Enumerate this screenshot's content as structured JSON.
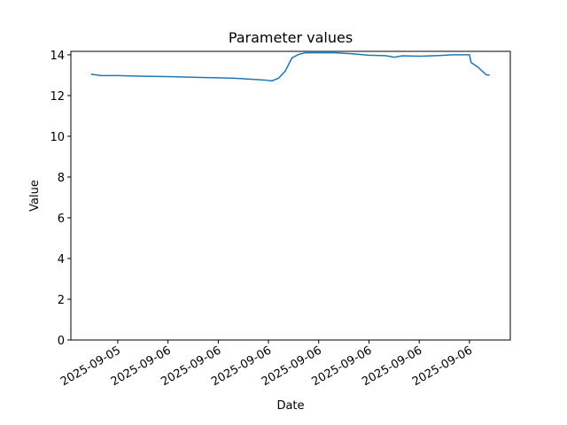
{
  "chart_data": {
    "type": "line",
    "title": "Parameter values",
    "x_label": "Date",
    "y_label": "Value",
    "x": [
      -1.6,
      -1.0,
      0,
      1,
      2,
      3,
      4,
      5,
      6,
      7,
      8,
      8.8,
      9.2,
      9.6,
      10.0,
      10.4,
      10.8,
      11.2,
      12,
      13,
      14,
      15,
      16,
      16.5,
      17,
      18,
      19,
      20,
      21,
      21.1,
      21.5,
      22.0,
      22.2
    ],
    "series": [
      {
        "name": "Value",
        "color": "#1f77b4",
        "values": [
          13.05,
          12.98,
          12.98,
          12.96,
          12.94,
          12.93,
          12.91,
          12.89,
          12.87,
          12.85,
          12.8,
          12.76,
          12.72,
          12.85,
          13.2,
          13.85,
          14.02,
          14.1,
          14.1,
          14.1,
          14.05,
          13.98,
          13.96,
          13.88,
          13.95,
          13.93,
          13.96,
          14.0,
          14.0,
          13.62,
          13.4,
          13.02,
          13.0
        ]
      }
    ],
    "xlim": [
      -2.8,
      23.44
    ],
    "xticks": [
      {
        "value": 0,
        "label": "2025-09-05"
      },
      {
        "value": 3,
        "label": "2025-09-06"
      },
      {
        "value": 6,
        "label": "2025-09-06"
      },
      {
        "value": 9,
        "label": "2025-09-06"
      },
      {
        "value": 12,
        "label": "2025-09-06"
      },
      {
        "value": 15,
        "label": "2025-09-06"
      },
      {
        "value": 18,
        "label": "2025-09-06"
      },
      {
        "value": 21,
        "label": "2025-09-06"
      }
    ],
    "ylim": [
      0,
      14.17
    ],
    "yticks": [
      0,
      2,
      4,
      6,
      8,
      10,
      12,
      14
    ]
  }
}
